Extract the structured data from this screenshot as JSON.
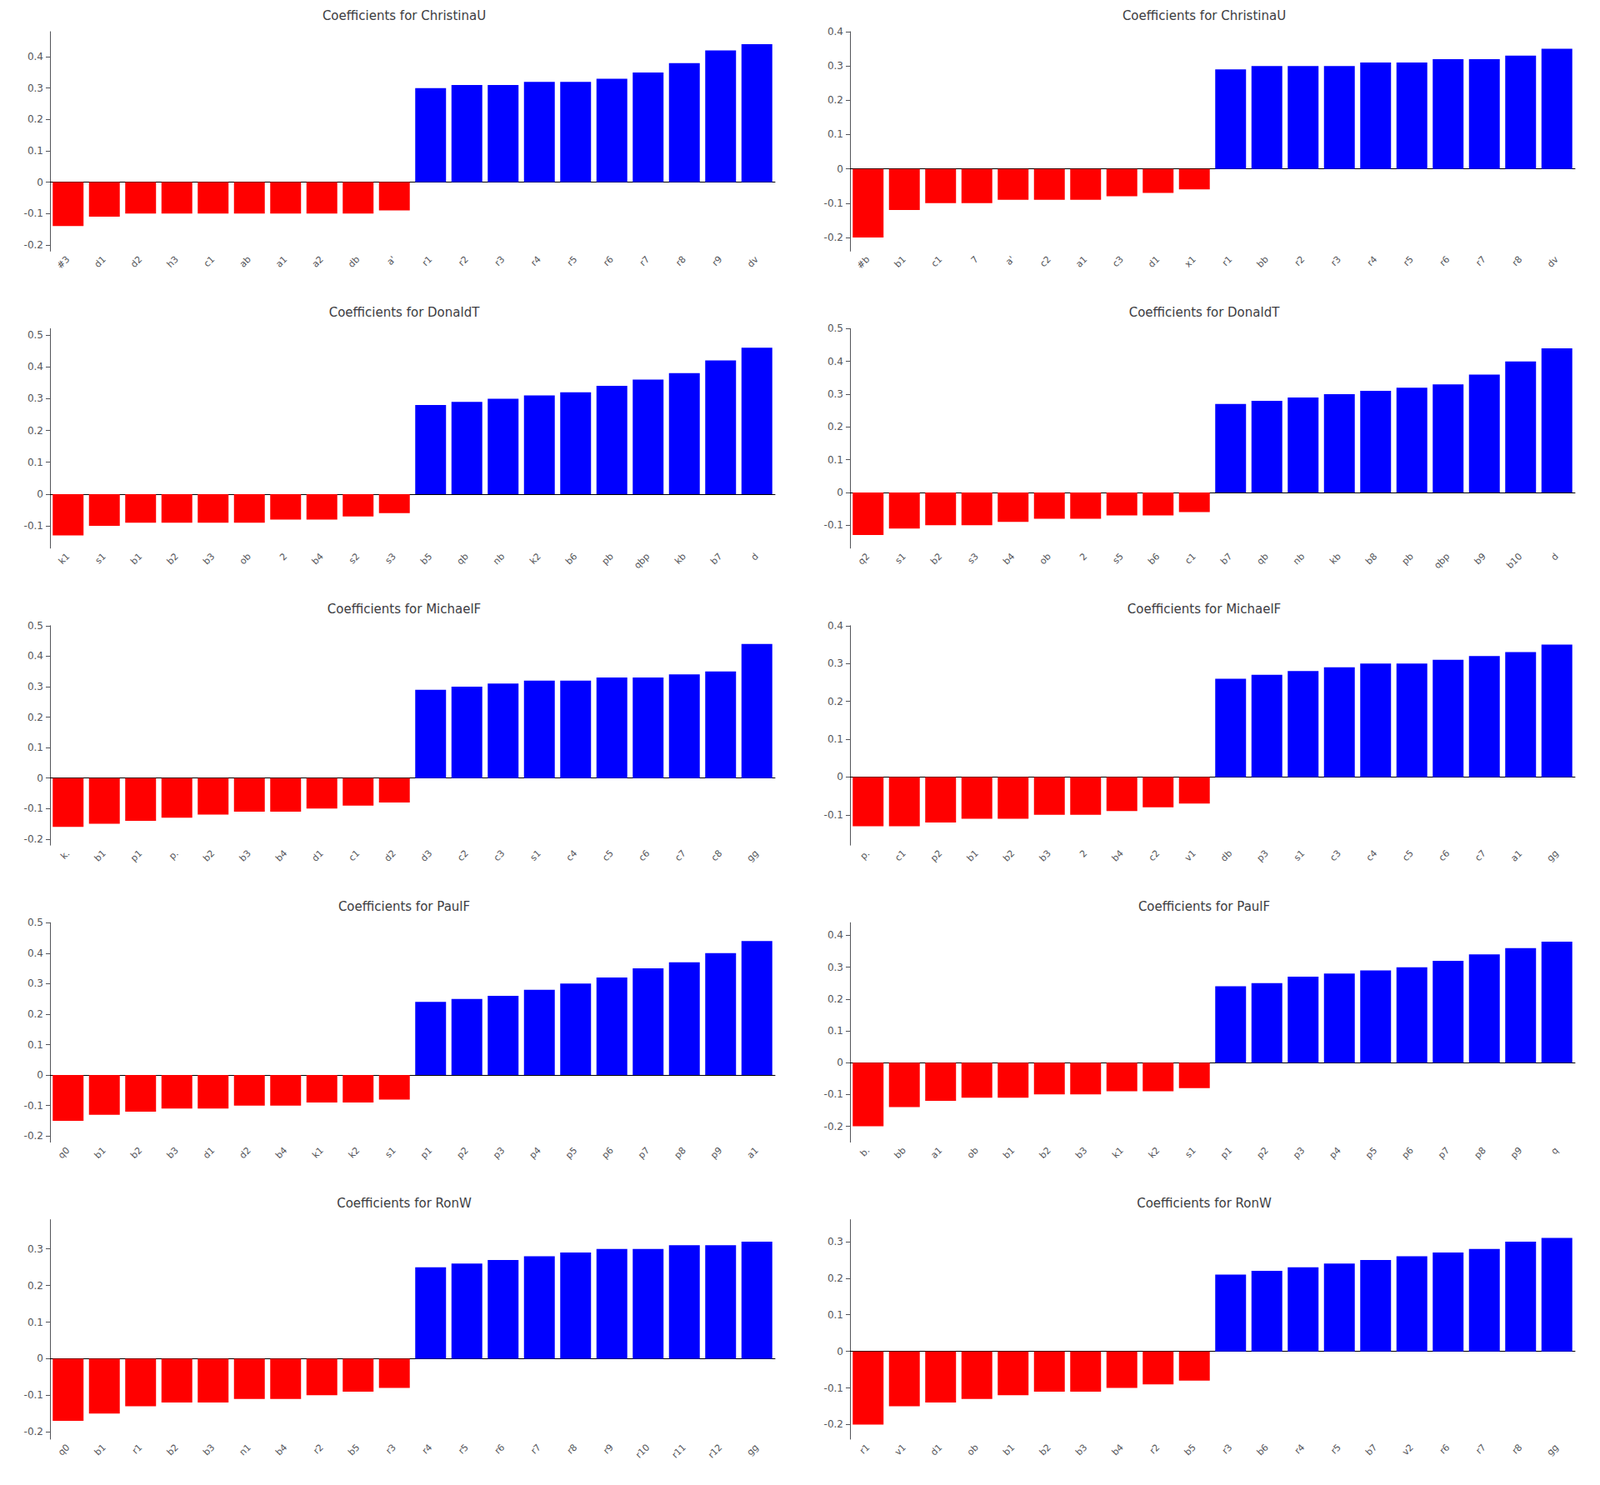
{
  "chart_data": [
    {
      "type": "bar",
      "title": "Coefficients for ChristinaU",
      "categories": [
        "#3",
        "d1",
        "d2",
        "h3",
        "c1",
        "ab",
        "a1",
        "a2",
        "db",
        "a'",
        "r1",
        "r2",
        "r3",
        "r4",
        "r5",
        "r6",
        "r7",
        "r8",
        "r9",
        "dv"
      ],
      "values": [
        -0.14,
        -0.11,
        -0.1,
        -0.1,
        -0.1,
        -0.1,
        -0.1,
        -0.1,
        -0.1,
        -0.09,
        0.3,
        0.31,
        0.31,
        0.32,
        0.32,
        0.33,
        0.35,
        0.38,
        0.42,
        0.44
      ],
      "colors": [
        "#FF0000",
        "#FF0000",
        "#FF0000",
        "#FF0000",
        "#FF0000",
        "#FF0000",
        "#FF0000",
        "#FF0000",
        "#FF0000",
        "#FF0000",
        "#0000FF",
        "#0000FF",
        "#0000FF",
        "#0000FF",
        "#0000FF",
        "#0000FF",
        "#0000FF",
        "#0000FF",
        "#0000FF",
        "#0000FF"
      ],
      "ylim": [
        -0.22,
        0.48
      ],
      "yticks": [
        -0.2,
        -0.1,
        0,
        0.1,
        0.2,
        0.3,
        0.4
      ],
      "grid": false
    },
    {
      "type": "bar",
      "title": "Coefficients for ChristinaU",
      "categories": [
        "#b",
        "b1",
        "c1",
        "7",
        "a'",
        "c2",
        "a1",
        "c3",
        "d1",
        "x1",
        "r1",
        "bb",
        "r2",
        "r3",
        "r4",
        "r5",
        "r6",
        "r7",
        "r8",
        "dv"
      ],
      "values": [
        -0.2,
        -0.12,
        -0.1,
        -0.1,
        -0.09,
        -0.09,
        -0.09,
        -0.08,
        -0.07,
        -0.06,
        0.29,
        0.3,
        0.3,
        0.3,
        0.31,
        0.31,
        0.32,
        0.32,
        0.33,
        0.35
      ],
      "colors": [
        "#FF0000",
        "#FF0000",
        "#FF0000",
        "#FF0000",
        "#FF0000",
        "#FF0000",
        "#FF0000",
        "#FF0000",
        "#FF0000",
        "#FF0000",
        "#0000FF",
        "#0000FF",
        "#0000FF",
        "#0000FF",
        "#0000FF",
        "#0000FF",
        "#0000FF",
        "#0000FF",
        "#0000FF",
        "#0000FF"
      ],
      "ylim": [
        -0.24,
        0.4
      ],
      "yticks": [
        -0.2,
        -0.1,
        0,
        0.1,
        0.2,
        0.3,
        0.4
      ],
      "grid": false
    },
    {
      "type": "bar",
      "title": "Coefficients for DonaldT",
      "categories": [
        "k1",
        "s1",
        "b1",
        "b2",
        "b3",
        "ob",
        "2",
        "b4",
        "s2",
        "s3",
        "b5",
        "qb",
        "nb",
        "k2",
        "b6",
        "pb",
        "qbp",
        "kb",
        "b7",
        "d"
      ],
      "values": [
        -0.13,
        -0.1,
        -0.09,
        -0.09,
        -0.09,
        -0.09,
        -0.08,
        -0.08,
        -0.07,
        -0.06,
        0.28,
        0.29,
        0.3,
        0.31,
        0.32,
        0.34,
        0.36,
        0.38,
        0.42,
        0.46
      ],
      "colors": [
        "#FF0000",
        "#FF0000",
        "#FF0000",
        "#FF0000",
        "#FF0000",
        "#FF0000",
        "#FF0000",
        "#FF0000",
        "#FF0000",
        "#FF0000",
        "#0000FF",
        "#0000FF",
        "#0000FF",
        "#0000FF",
        "#0000FF",
        "#0000FF",
        "#0000FF",
        "#0000FF",
        "#0000FF",
        "#0000FF"
      ],
      "ylim": [
        -0.17,
        0.52
      ],
      "yticks": [
        -0.1,
        0,
        0.1,
        0.2,
        0.3,
        0.4,
        0.5
      ],
      "grid": false
    },
    {
      "type": "bar",
      "title": "Coefficients for DonaldT",
      "categories": [
        "q2",
        "s1",
        "b2",
        "s3",
        "b4",
        "ob",
        "2",
        "s5",
        "b6",
        "c1",
        "b7",
        "qb",
        "nb",
        "kb",
        "b8",
        "pb",
        "qbp",
        "b9",
        "b10",
        "d"
      ],
      "values": [
        -0.13,
        -0.11,
        -0.1,
        -0.1,
        -0.09,
        -0.08,
        -0.08,
        -0.07,
        -0.07,
        -0.06,
        0.27,
        0.28,
        0.29,
        0.3,
        0.31,
        0.32,
        0.33,
        0.36,
        0.4,
        0.44
      ],
      "colors": [
        "#FF0000",
        "#FF0000",
        "#FF0000",
        "#FF0000",
        "#FF0000",
        "#FF0000",
        "#FF0000",
        "#FF0000",
        "#FF0000",
        "#FF0000",
        "#0000FF",
        "#0000FF",
        "#0000FF",
        "#0000FF",
        "#0000FF",
        "#0000FF",
        "#0000FF",
        "#0000FF",
        "#0000FF",
        "#0000FF"
      ],
      "ylim": [
        -0.17,
        0.5
      ],
      "yticks": [
        -0.1,
        0,
        0.1,
        0.2,
        0.3,
        0.4,
        0.5
      ],
      "grid": false
    },
    {
      "type": "bar",
      "title": "Coefficients for MichaelF",
      "categories": [
        "k.",
        "b1",
        "p1",
        "p.",
        "b2",
        "b3",
        "b4",
        "d1",
        "c1",
        "d2",
        "d3",
        "c2",
        "c3",
        "s1",
        "c4",
        "c5",
        "c6",
        "c7",
        "c8",
        "gg"
      ],
      "values": [
        -0.16,
        -0.15,
        -0.14,
        -0.13,
        -0.12,
        -0.11,
        -0.11,
        -0.1,
        -0.09,
        -0.08,
        0.29,
        0.3,
        0.31,
        0.32,
        0.32,
        0.33,
        0.33,
        0.34,
        0.35,
        0.44
      ],
      "colors": [
        "#FF0000",
        "#FF0000",
        "#FF0000",
        "#FF0000",
        "#FF0000",
        "#FF0000",
        "#FF0000",
        "#FF0000",
        "#FF0000",
        "#FF0000",
        "#0000FF",
        "#0000FF",
        "#0000FF",
        "#0000FF",
        "#0000FF",
        "#0000FF",
        "#0000FF",
        "#0000FF",
        "#0000FF",
        "#0000FF"
      ],
      "ylim": [
        -0.22,
        0.5
      ],
      "yticks": [
        -0.2,
        -0.1,
        0,
        0.1,
        0.2,
        0.3,
        0.4,
        0.5
      ],
      "grid": false
    },
    {
      "type": "bar",
      "title": "Coefficients for MichaelF",
      "categories": [
        "p.",
        "c1",
        "p2",
        "b1",
        "b2",
        "b3",
        "2",
        "b4",
        "c2",
        "v1",
        "db",
        "p3",
        "s1",
        "c3",
        "c4",
        "c5",
        "c6",
        "c7",
        "a1",
        "gg"
      ],
      "values": [
        -0.13,
        -0.13,
        -0.12,
        -0.11,
        -0.11,
        -0.1,
        -0.1,
        -0.09,
        -0.08,
        -0.07,
        0.26,
        0.27,
        0.28,
        0.29,
        0.3,
        0.3,
        0.31,
        0.32,
        0.33,
        0.35
      ],
      "colors": [
        "#FF0000",
        "#FF0000",
        "#FF0000",
        "#FF0000",
        "#FF0000",
        "#FF0000",
        "#FF0000",
        "#FF0000",
        "#FF0000",
        "#FF0000",
        "#0000FF",
        "#0000FF",
        "#0000FF",
        "#0000FF",
        "#0000FF",
        "#0000FF",
        "#0000FF",
        "#0000FF",
        "#0000FF",
        "#0000FF"
      ],
      "ylim": [
        -0.18,
        0.4
      ],
      "yticks": [
        -0.1,
        0,
        0.1,
        0.2,
        0.3,
        0.4
      ],
      "grid": false
    },
    {
      "type": "bar",
      "title": "Coefficients for PaulF",
      "categories": [
        "q0",
        "b1",
        "b2",
        "b3",
        "d1",
        "d2",
        "b4",
        "k1",
        "k2",
        "s1",
        "p1",
        "p2",
        "p3",
        "p4",
        "p5",
        "p6",
        "p7",
        "p8",
        "p9",
        "a1"
      ],
      "values": [
        -0.15,
        -0.13,
        -0.12,
        -0.11,
        -0.11,
        -0.1,
        -0.1,
        -0.09,
        -0.09,
        -0.08,
        0.24,
        0.25,
        0.26,
        0.28,
        0.3,
        0.32,
        0.35,
        0.37,
        0.4,
        0.44
      ],
      "colors": [
        "#FF0000",
        "#FF0000",
        "#FF0000",
        "#FF0000",
        "#FF0000",
        "#FF0000",
        "#FF0000",
        "#FF0000",
        "#FF0000",
        "#FF0000",
        "#0000FF",
        "#0000FF",
        "#0000FF",
        "#0000FF",
        "#0000FF",
        "#0000FF",
        "#0000FF",
        "#0000FF",
        "#0000FF",
        "#0000FF"
      ],
      "ylim": [
        -0.22,
        0.5
      ],
      "yticks": [
        -0.2,
        -0.1,
        0,
        0.1,
        0.2,
        0.3,
        0.4,
        0.5
      ],
      "grid": false
    },
    {
      "type": "bar",
      "title": "Coefficients for PaulF",
      "categories": [
        "b.",
        "bb",
        "a1",
        "ob",
        "b1",
        "b2",
        "b3",
        "k1",
        "k2",
        "s1",
        "p1",
        "p2",
        "p3",
        "p4",
        "p5",
        "p6",
        "p7",
        "p8",
        "p9",
        "q"
      ],
      "values": [
        -0.2,
        -0.14,
        -0.12,
        -0.11,
        -0.11,
        -0.1,
        -0.1,
        -0.09,
        -0.09,
        -0.08,
        0.24,
        0.25,
        0.27,
        0.28,
        0.29,
        0.3,
        0.32,
        0.34,
        0.36,
        0.38
      ],
      "colors": [
        "#FF0000",
        "#FF0000",
        "#FF0000",
        "#FF0000",
        "#FF0000",
        "#FF0000",
        "#FF0000",
        "#FF0000",
        "#FF0000",
        "#FF0000",
        "#0000FF",
        "#0000FF",
        "#0000FF",
        "#0000FF",
        "#0000FF",
        "#0000FF",
        "#0000FF",
        "#0000FF",
        "#0000FF",
        "#0000FF"
      ],
      "ylim": [
        -0.25,
        0.44
      ],
      "yticks": [
        -0.2,
        -0.1,
        0,
        0.1,
        0.2,
        0.3,
        0.4
      ],
      "grid": false
    },
    {
      "type": "bar",
      "title": "Coefficients for RonW",
      "categories": [
        "q0",
        "b1",
        "r1",
        "b2",
        "b3",
        "n1",
        "b4",
        "r2",
        "b5",
        "r3",
        "r4",
        "r5",
        "r6",
        "r7",
        "r8",
        "r9",
        "r10",
        "r11",
        "r12",
        "gg"
      ],
      "values": [
        -0.17,
        -0.15,
        -0.13,
        -0.12,
        -0.12,
        -0.11,
        -0.11,
        -0.1,
        -0.09,
        -0.08,
        0.25,
        0.26,
        0.27,
        0.28,
        0.29,
        0.3,
        0.3,
        0.31,
        0.31,
        0.32
      ],
      "colors": [
        "#FF0000",
        "#FF0000",
        "#FF0000",
        "#FF0000",
        "#FF0000",
        "#FF0000",
        "#FF0000",
        "#FF0000",
        "#FF0000",
        "#FF0000",
        "#0000FF",
        "#0000FF",
        "#0000FF",
        "#0000FF",
        "#0000FF",
        "#0000FF",
        "#0000FF",
        "#0000FF",
        "#0000FF",
        "#0000FF"
      ],
      "ylim": [
        -0.22,
        0.38
      ],
      "yticks": [
        -0.2,
        -0.1,
        0,
        0.1,
        0.2,
        0.3
      ],
      "grid": false
    },
    {
      "type": "bar",
      "title": "Coefficients for RonW",
      "categories": [
        "r1",
        "v1",
        "d1",
        "ob",
        "b1",
        "b2",
        "b3",
        "b4",
        "r2",
        "b5",
        "r3",
        "b6",
        "r4",
        "r5",
        "b7",
        "v2",
        "r6",
        "r7",
        "r8",
        "gg"
      ],
      "values": [
        -0.2,
        -0.15,
        -0.14,
        -0.13,
        -0.12,
        -0.11,
        -0.11,
        -0.1,
        -0.09,
        -0.08,
        0.21,
        0.22,
        0.23,
        0.24,
        0.25,
        0.26,
        0.27,
        0.28,
        0.3,
        0.31
      ],
      "colors": [
        "#FF0000",
        "#FF0000",
        "#FF0000",
        "#FF0000",
        "#FF0000",
        "#FF0000",
        "#FF0000",
        "#FF0000",
        "#FF0000",
        "#FF0000",
        "#0000FF",
        "#0000FF",
        "#0000FF",
        "#0000FF",
        "#0000FF",
        "#0000FF",
        "#0000FF",
        "#0000FF",
        "#0000FF",
        "#0000FF"
      ],
      "ylim": [
        -0.24,
        0.36
      ],
      "yticks": [
        -0.2,
        -0.1,
        0,
        0.1,
        0.2,
        0.3
      ],
      "grid": false
    }
  ]
}
